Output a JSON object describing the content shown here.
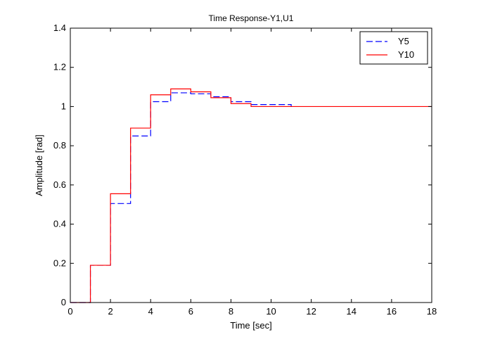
{
  "chart_data": {
    "type": "line",
    "title": "Time Response-Y1,U1",
    "xlabel": "Time [sec]",
    "ylabel": "Amplitude [rad]",
    "xlim": [
      0,
      18
    ],
    "ylim": [
      0,
      1.4
    ],
    "xticks": [
      "0",
      "2",
      "4",
      "6",
      "8",
      "10",
      "12",
      "14",
      "16",
      "18"
    ],
    "yticks": [
      "0",
      "0.2",
      "0.4",
      "0.6",
      "0.8",
      "1",
      "1.2",
      "1.4"
    ],
    "grid": false,
    "legend_position": "top-right",
    "series": [
      {
        "name": "Y5",
        "style": "step",
        "line": "dashed",
        "color": "#0000ff",
        "x": [
          0,
          1,
          2,
          3,
          4,
          5,
          6,
          7,
          8,
          9,
          10,
          11
        ],
        "y": [
          0,
          0.19,
          0.505,
          0.85,
          1.025,
          1.07,
          1.065,
          1.05,
          1.025,
          1.01,
          1.01,
          1.0
        ]
      },
      {
        "name": "Y10",
        "style": "step",
        "line": "solid",
        "color": "#ff0000",
        "x": [
          0,
          1,
          2,
          3,
          4,
          5,
          6,
          7,
          8,
          9,
          18
        ],
        "y": [
          0,
          0.19,
          0.555,
          0.89,
          1.06,
          1.09,
          1.075,
          1.045,
          1.015,
          1.0,
          1.0
        ]
      }
    ]
  },
  "colors": {
    "figure_background": "#ffffff",
    "axes_background": "#ffffff",
    "axes_color": "#000000"
  }
}
